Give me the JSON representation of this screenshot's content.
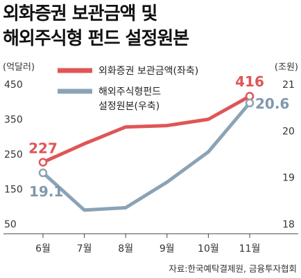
{
  "title_lines": [
    "외화증권 보관금액 및",
    "해외주식형 펀드 설정원본"
  ],
  "source": "자료:한국예탁결제원, 금융투자협회",
  "colors": {
    "red": "#e05556",
    "blue": "#8aa3b6",
    "text": "#333333",
    "grid": "#d0d0d0"
  },
  "chart_data": {
    "type": "line",
    "categories": [
      "6월",
      "7월",
      "8월",
      "9월",
      "10월",
      "11월"
    ],
    "left_axis": {
      "unit": "(억달러)",
      "ylim": [
        50,
        450
      ],
      "ticks": [
        50,
        150,
        250,
        350,
        450
      ]
    },
    "right_axis": {
      "unit": "(조원)",
      "ylim": [
        18,
        21
      ],
      "ticks": [
        18,
        19,
        20,
        21
      ]
    },
    "series": [
      {
        "name": "외화증권 보관금액(좌축)",
        "axis": "left",
        "color": "#e05556",
        "values": [
          227,
          280,
          328,
          332,
          350,
          416
        ],
        "labels": [
          {
            "index": 0,
            "text": "227"
          },
          {
            "index": 5,
            "text": "416"
          }
        ]
      },
      {
        "name": "해외주식형펀드 설정원본(우축)",
        "axis": "right",
        "color": "#8aa3b6",
        "values": [
          19.1,
          18.3,
          18.35,
          18.9,
          19.55,
          20.6
        ],
        "labels": [
          {
            "index": 0,
            "text": "19.1"
          },
          {
            "index": 5,
            "text": "20.6"
          }
        ]
      }
    ],
    "legend_lines": [
      [
        "외화증권 보관금액(좌축)"
      ],
      [
        "해외주식형펀드",
        "설정원본(우축)"
      ]
    ],
    "legend_position": "top-right",
    "grid": false
  }
}
